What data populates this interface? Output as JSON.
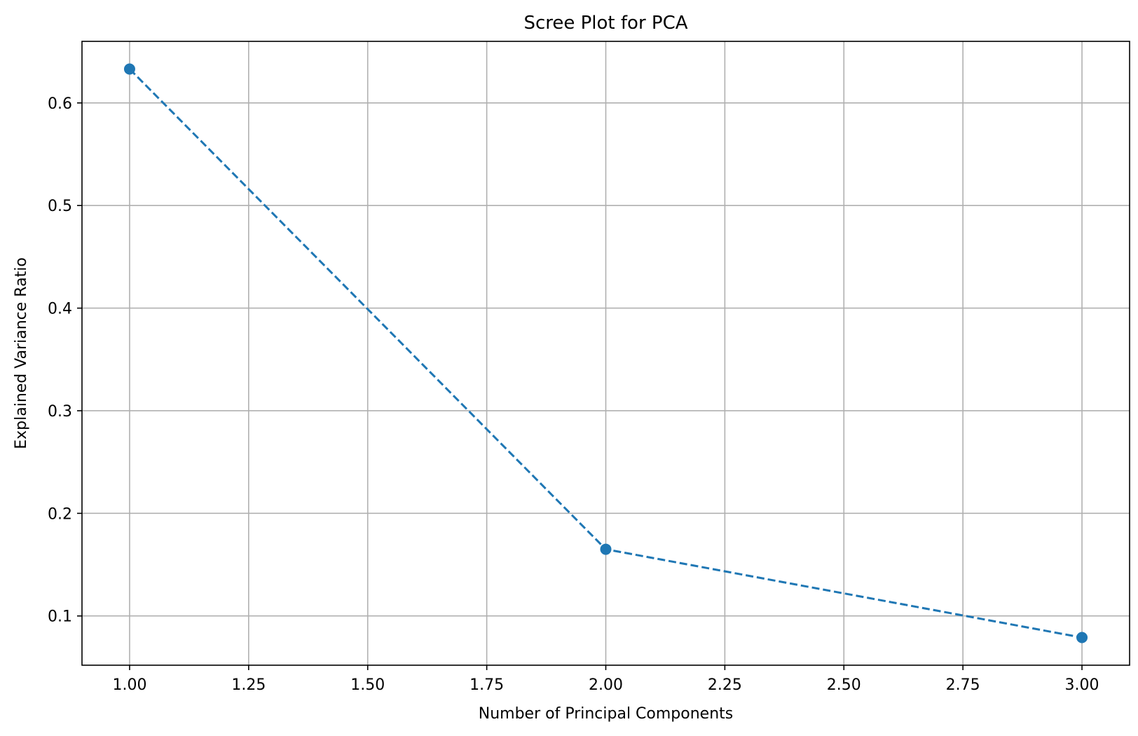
{
  "chart_data": {
    "type": "line",
    "title": "Scree Plot for PCA",
    "xlabel": "Number of Principal Components",
    "ylabel": "Explained Variance Ratio",
    "x": [
      1,
      2,
      3
    ],
    "series": [
      {
        "values": [
          0.633,
          0.165,
          0.079
        ],
        "color": "#1f77b4",
        "line_style": "dashed",
        "marker": "circle"
      }
    ],
    "xlim": [
      0.9,
      3.1
    ],
    "ylim": [
      0.052,
      0.66
    ],
    "x_ticks": [
      1.0,
      1.25,
      1.5,
      1.75,
      2.0,
      2.25,
      2.5,
      2.75,
      3.0
    ],
    "x_tick_labels": [
      "1.00",
      "1.25",
      "1.50",
      "1.75",
      "2.00",
      "2.25",
      "2.50",
      "2.75",
      "3.00"
    ],
    "y_ticks": [
      0.1,
      0.2,
      0.3,
      0.4,
      0.5,
      0.6
    ],
    "y_tick_labels": [
      "0.1",
      "0.2",
      "0.3",
      "0.4",
      "0.5",
      "0.6"
    ],
    "grid": true,
    "grid_color": "#b0b0b0",
    "legend": "none"
  }
}
